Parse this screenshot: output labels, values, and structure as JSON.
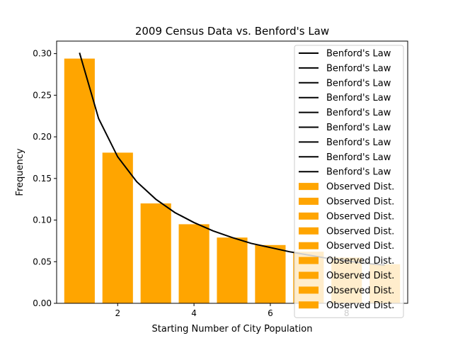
{
  "chart_data": {
    "type": "bar",
    "title": "2009 Census Data vs. Benford's Law",
    "xlabel": "Starting Number of City Population",
    "ylabel": "Frequency",
    "xlim": [
      0.4,
      9.6
    ],
    "ylim": [
      0,
      0.315
    ],
    "x_ticks": [
      2,
      4,
      6,
      8
    ],
    "y_ticks": [
      0.0,
      0.05,
      0.1,
      0.15,
      0.2,
      0.25,
      0.3
    ],
    "x_tick_labels": [
      "2",
      "4",
      "6",
      "8"
    ],
    "y_tick_labels": [
      "0.00",
      "0.05",
      "0.10",
      "0.15",
      "0.20",
      "0.25",
      "0.30"
    ],
    "grid": false,
    "legend_position": "top-right",
    "series": [
      {
        "name": "Observed Dist.",
        "type": "bar",
        "color": "#ffa500",
        "x": [
          1,
          2,
          3,
          4,
          5,
          6,
          7,
          8,
          9
        ],
        "values": [
          0.294,
          0.181,
          0.12,
          0.095,
          0.079,
          0.07,
          0.062,
          0.055,
          0.047
        ]
      },
      {
        "name": "Benford's Law",
        "type": "line",
        "color": "#000000",
        "x": [
          1,
          1.5,
          2,
          2.5,
          3,
          3.5,
          4,
          4.5,
          5,
          5.5,
          6,
          6.5,
          7,
          7.5,
          8,
          8.5,
          9
        ],
        "values": [
          0.301,
          0.222,
          0.176,
          0.146,
          0.125,
          0.109,
          0.097,
          0.087,
          0.079,
          0.072,
          0.067,
          0.062,
          0.058,
          0.054,
          0.051,
          0.048,
          0.046
        ]
      }
    ],
    "legend": {
      "entries": [
        {
          "label": "Benford's Law",
          "kind": "line",
          "color": "#000000"
        },
        {
          "label": "Benford's Law",
          "kind": "line",
          "color": "#000000"
        },
        {
          "label": "Benford's Law",
          "kind": "line",
          "color": "#000000"
        },
        {
          "label": "Benford's Law",
          "kind": "line",
          "color": "#000000"
        },
        {
          "label": "Benford's Law",
          "kind": "line",
          "color": "#000000"
        },
        {
          "label": "Benford's Law",
          "kind": "line",
          "color": "#000000"
        },
        {
          "label": "Benford's Law",
          "kind": "line",
          "color": "#000000"
        },
        {
          "label": "Benford's Law",
          "kind": "line",
          "color": "#000000"
        },
        {
          "label": "Benford's Law",
          "kind": "line",
          "color": "#000000"
        },
        {
          "label": "Observed Dist.",
          "kind": "patch",
          "color": "#ffa500"
        },
        {
          "label": "Observed Dist.",
          "kind": "patch",
          "color": "#ffa500"
        },
        {
          "label": "Observed Dist.",
          "kind": "patch",
          "color": "#ffa500"
        },
        {
          "label": "Observed Dist.",
          "kind": "patch",
          "color": "#ffa500"
        },
        {
          "label": "Observed Dist.",
          "kind": "patch",
          "color": "#ffa500"
        },
        {
          "label": "Observed Dist.",
          "kind": "patch",
          "color": "#ffa500"
        },
        {
          "label": "Observed Dist.",
          "kind": "patch",
          "color": "#ffa500"
        },
        {
          "label": "Observed Dist.",
          "kind": "patch",
          "color": "#ffa500"
        },
        {
          "label": "Observed Dist.",
          "kind": "patch",
          "color": "#ffa500"
        }
      ]
    }
  }
}
